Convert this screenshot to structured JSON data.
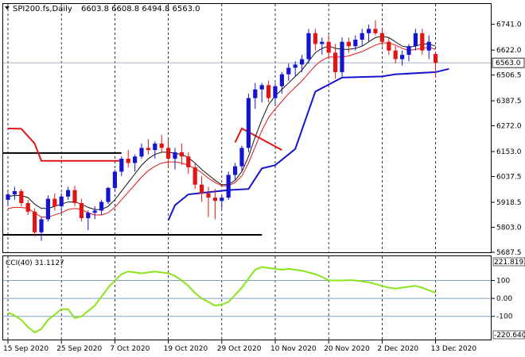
{
  "header": {
    "symbol_label": "SPI200.fs,Daily",
    "ohlc_text": "6603.8 6608.8 6494.8 6563.0"
  },
  "cci_panel": {
    "label": "CCI(40) 31.1127",
    "max_label": "221.8193",
    "min_label": "-220.640"
  },
  "colors": {
    "bull": "#1515d0",
    "bear": "#e21515",
    "signal_line": "#8ae51a",
    "band_red": "#e21515",
    "band_blue": "#1515d0",
    "inner_band": "#111111",
    "cci_level": "#7fa2c5"
  },
  "chart_data": [
    {
      "type": "candlestick",
      "title": "",
      "ylim": [
        5687.5,
        6780
      ],
      "y_ticks": [
        "6741.0",
        "6622.0",
        "6506.5",
        "6387.5",
        "6272.0",
        "6153.0",
        "6037.5",
        "5918.5",
        "5803.0",
        "5687.5"
      ],
      "last_price_label": "6563.0",
      "last_price": 6563.0,
      "x_labels": [
        "15 Sep 2020",
        "25 Sep 2020",
        "7 Oct 2020",
        "19 Oct 2020",
        "29 Oct 2020",
        "10 Nov 2020",
        "20 Nov 2020",
        "2 Dec 2020",
        "13 Dec 2020"
      ],
      "x_label_index": [
        0,
        8,
        16,
        24,
        32,
        40,
        48,
        56,
        64
      ],
      "ohlc": [
        [
          5930,
          5965,
          5900,
          5955
        ],
        [
          5955,
          5990,
          5930,
          5970
        ],
        [
          5970,
          5980,
          5900,
          5915
        ],
        [
          5915,
          5930,
          5860,
          5875
        ],
        [
          5875,
          5890,
          5760,
          5780
        ],
        [
          5780,
          5850,
          5740,
          5840
        ],
        [
          5840,
          5950,
          5830,
          5935
        ],
        [
          5935,
          5960,
          5880,
          5900
        ],
        [
          5900,
          5960,
          5870,
          5945
        ],
        [
          5945,
          5990,
          5930,
          5975
        ],
        [
          5975,
          5995,
          5900,
          5915
        ],
        [
          5915,
          5935,
          5830,
          5845
        ],
        [
          5845,
          5880,
          5790,
          5870
        ],
        [
          5870,
          5900,
          5840,
          5880
        ],
        [
          5880,
          5930,
          5860,
          5920
        ],
        [
          5920,
          5990,
          5910,
          5985
        ],
        [
          5985,
          6070,
          5970,
          6060
        ],
        [
          6060,
          6130,
          6040,
          6120
        ],
        [
          6120,
          6160,
          6080,
          6100
        ],
        [
          6100,
          6140,
          6060,
          6130
        ],
        [
          6130,
          6190,
          6120,
          6170
        ],
        [
          6170,
          6210,
          6140,
          6160
        ],
        [
          6160,
          6200,
          6120,
          6190
        ],
        [
          6190,
          6230,
          6150,
          6170
        ],
        [
          6170,
          6210,
          6080,
          6120
        ],
        [
          6120,
          6170,
          6070,
          6150
        ],
        [
          6150,
          6190,
          6090,
          6130
        ],
        [
          6130,
          6150,
          6050,
          6080
        ],
        [
          6080,
          6100,
          5980,
          6000
        ],
        [
          6000,
          6040,
          5920,
          5960
        ],
        [
          5960,
          5990,
          5850,
          5940
        ],
        [
          5940,
          5980,
          5840,
          5925
        ],
        [
          5925,
          5950,
          5890,
          5940
        ],
        [
          5940,
          6060,
          5930,
          6045
        ],
        [
          6045,
          6100,
          6020,
          6085
        ],
        [
          6085,
          6180,
          6060,
          6170
        ],
        [
          6170,
          6420,
          6150,
          6400
        ],
        [
          6400,
          6470,
          6350,
          6440
        ],
        [
          6440,
          6470,
          6380,
          6460
        ],
        [
          6460,
          6480,
          6380,
          6400
        ],
        [
          6400,
          6470,
          6370,
          6455
        ],
        [
          6455,
          6520,
          6420,
          6510
        ],
        [
          6510,
          6560,
          6480,
          6540
        ],
        [
          6540,
          6570,
          6500,
          6555
        ],
        [
          6555,
          6600,
          6520,
          6580
        ],
        [
          6580,
          6720,
          6560,
          6700
        ],
        [
          6700,
          6720,
          6620,
          6650
        ],
        [
          6650,
          6680,
          6600,
          6660
        ],
        [
          6660,
          6690,
          6580,
          6610
        ],
        [
          6610,
          6650,
          6490,
          6520
        ],
        [
          6520,
          6680,
          6500,
          6660
        ],
        [
          6660,
          6680,
          6610,
          6640
        ],
        [
          6640,
          6690,
          6620,
          6670
        ],
        [
          6670,
          6720,
          6640,
          6700
        ],
        [
          6700,
          6740,
          6660,
          6720
        ],
        [
          6720,
          6760,
          6690,
          6700
        ],
        [
          6700,
          6720,
          6640,
          6660
        ],
        [
          6660,
          6680,
          6600,
          6620
        ],
        [
          6620,
          6640,
          6560,
          6580
        ],
        [
          6580,
          6620,
          6550,
          6600
        ],
        [
          6600,
          6650,
          6570,
          6640
        ],
        [
          6640,
          6720,
          6620,
          6700
        ],
        [
          6700,
          6720,
          6600,
          6620
        ],
        [
          6620,
          6690,
          6580,
          6660
        ],
        [
          6603.8,
          6608.8,
          6494.8,
          6563.0
        ]
      ],
      "upper_band_red": [
        [
          0,
          6260
        ],
        [
          2,
          6258
        ],
        [
          4,
          6190
        ],
        [
          5,
          6110
        ],
        [
          17,
          6110
        ],
        [
          34,
          6195
        ],
        [
          35,
          6260
        ],
        [
          41,
          6160
        ]
      ],
      "lower_band_blue": [
        [
          24,
          5835
        ],
        [
          25,
          5905
        ],
        [
          27,
          5955
        ],
        [
          33,
          5975
        ],
        [
          36,
          5980
        ],
        [
          38,
          6075
        ],
        [
          40,
          6090
        ],
        [
          43,
          6165
        ],
        [
          46,
          6430
        ],
        [
          50,
          6495
        ],
        [
          56,
          6500
        ],
        [
          58,
          6510
        ],
        [
          64,
          6520
        ],
        [
          66,
          6535
        ]
      ],
      "ma_black": [
        5945,
        5950,
        5950,
        5940,
        5910,
        5890,
        5890,
        5900,
        5910,
        5920,
        5920,
        5910,
        5895,
        5885,
        5885,
        5900,
        5930,
        5970,
        6010,
        6050,
        6090,
        6120,
        6140,
        6150,
        6150,
        6145,
        6140,
        6125,
        6100,
        6070,
        6045,
        6020,
        6000,
        6000,
        6020,
        6060,
        6130,
        6220,
        6300,
        6370,
        6410,
        6440,
        6470,
        6500,
        6530,
        6570,
        6610,
        6630,
        6640,
        6630,
        6625,
        6625,
        6630,
        6640,
        6660,
        6680,
        6685,
        6680,
        6660,
        6640,
        6635,
        6640,
        6650,
        6650,
        6640
      ],
      "ma_red": [
        5890,
        5895,
        5895,
        5890,
        5870,
        5850,
        5850,
        5860,
        5870,
        5885,
        5890,
        5885,
        5870,
        5860,
        5860,
        5870,
        5895,
        5930,
        5965,
        6000,
        6035,
        6065,
        6085,
        6100,
        6105,
        6105,
        6100,
        6090,
        6075,
        6055,
        6030,
        6010,
        5995,
        5995,
        6010,
        6040,
        6100,
        6175,
        6250,
        6310,
        6350,
        6385,
        6420,
        6450,
        6480,
        6515,
        6550,
        6575,
        6590,
        6590,
        6590,
        6595,
        6605,
        6615,
        6630,
        6645,
        6655,
        6655,
        6645,
        6630,
        6620,
        6625,
        6630,
        6635,
        6625
      ],
      "support_lines": [
        {
          "price": 6146,
          "from_index": 0,
          "to_index": 17
        },
        {
          "price": 5768,
          "from_index": 0,
          "to_index": 38
        }
      ]
    },
    {
      "type": "line",
      "title": "CCI(40)",
      "ylim": [
        -220.64,
        221.8193
      ],
      "y_ticks": [
        "221.8193",
        "100",
        "0.00",
        "-100",
        "-220.640"
      ],
      "levels": [
        100,
        0,
        -100
      ],
      "series": [
        {
          "values": [
            -80,
            -95,
            -120,
            -160,
            -190,
            -170,
            -120,
            -90,
            -60,
            -60,
            -110,
            -100,
            -70,
            -40,
            10,
            60,
            100,
            135,
            150,
            145,
            140,
            145,
            150,
            145,
            140,
            125,
            100,
            70,
            30,
            0,
            -20,
            -40,
            -35,
            -20,
            20,
            60,
            110,
            160,
            175,
            170,
            165,
            160,
            165,
            160,
            155,
            145,
            135,
            120,
            100,
            100,
            100,
            102,
            100,
            95,
            90,
            80,
            70,
            60,
            55,
            60,
            65,
            70,
            60,
            45,
            31.1127
          ]
        }
      ]
    }
  ]
}
